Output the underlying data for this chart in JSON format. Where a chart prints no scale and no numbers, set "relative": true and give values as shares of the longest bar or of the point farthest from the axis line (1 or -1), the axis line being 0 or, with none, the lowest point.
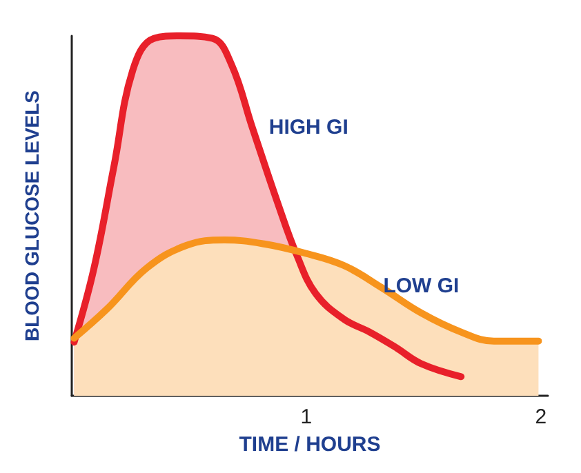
{
  "chart_data": {
    "type": "area",
    "relative": true,
    "xlabel": "TIME / HOURS",
    "ylabel": "BLOOD GLUCOSE LEVELS",
    "xlim": [
      0,
      2.03
    ],
    "xticks": [
      1,
      2
    ],
    "legend": false,
    "grid": false,
    "marker": "none",
    "series": [
      {
        "name": "HIGH GI",
        "color": "#e8202a",
        "x": [
          0.01,
          0.095,
          0.18,
          0.26,
          0.35,
          0.46,
          0.6,
          0.68,
          0.77,
          0.88,
          0.96,
          1.04,
          1.16,
          1.27,
          1.38,
          1.49,
          1.66
        ],
        "values": [
          0.149,
          0.355,
          0.638,
          0.904,
          0.993,
          1.0,
          0.993,
          0.922,
          0.745,
          0.532,
          0.39,
          0.284,
          0.213,
          0.177,
          0.135,
          0.089,
          0.053
        ]
      },
      {
        "name": "LOW GI",
        "color": "#f7941d",
        "x": [
          0.01,
          0.15,
          0.32,
          0.49,
          0.65,
          0.82,
          0.99,
          1.16,
          1.32,
          1.49,
          1.66,
          1.8,
          1.99
        ],
        "values": [
          0.16,
          0.241,
          0.355,
          0.418,
          0.433,
          0.422,
          0.397,
          0.362,
          0.301,
          0.23,
          0.177,
          0.152,
          0.152
        ]
      }
    ]
  }
}
